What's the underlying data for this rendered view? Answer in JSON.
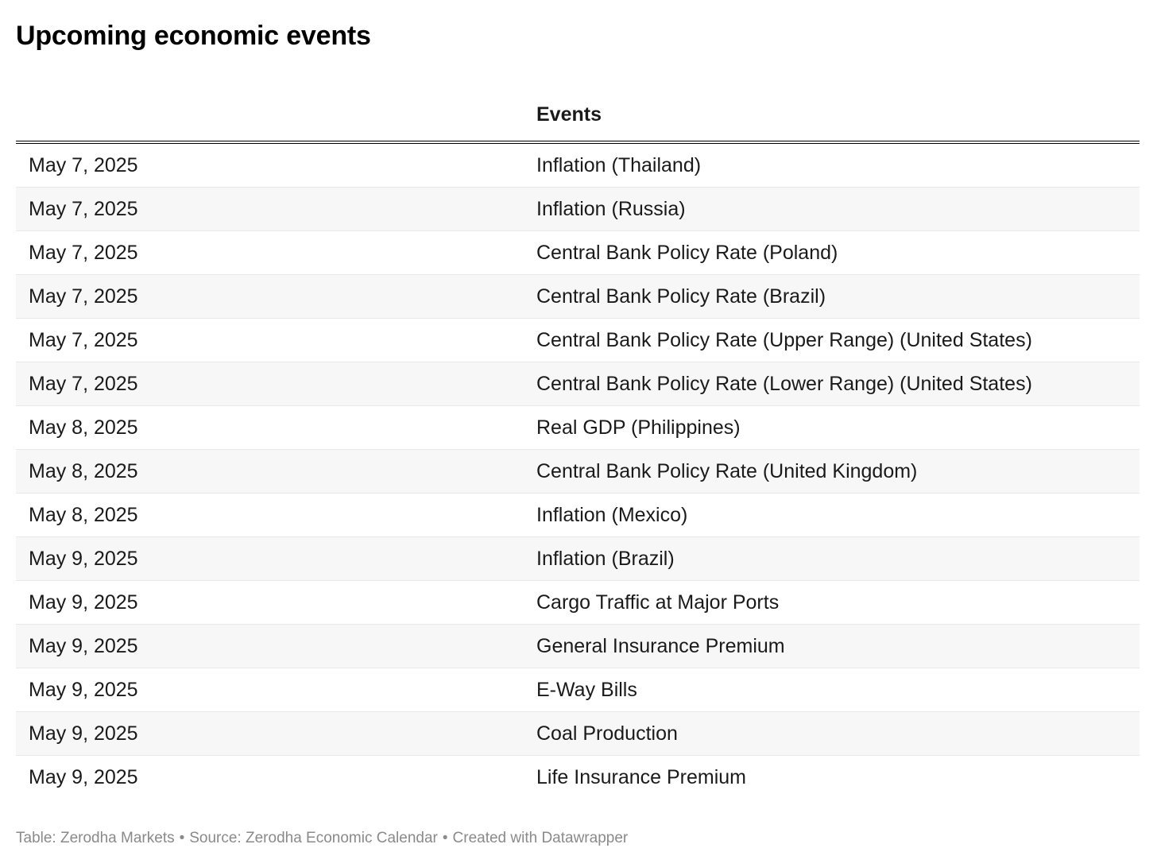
{
  "title": "Upcoming economic events",
  "table": {
    "header": {
      "date_label": "",
      "events_label": "Events"
    },
    "rows": [
      {
        "date": "May 7, 2025",
        "event": "Inflation (Thailand)"
      },
      {
        "date": "May 7, 2025",
        "event": "Inflation (Russia)"
      },
      {
        "date": "May 7, 2025",
        "event": "Central Bank Policy Rate (Poland)"
      },
      {
        "date": "May 7, 2025",
        "event": "Central Bank Policy Rate (Brazil)"
      },
      {
        "date": "May 7, 2025",
        "event": "Central Bank Policy Rate (Upper Range) (United States)"
      },
      {
        "date": "May 7, 2025",
        "event": "Central Bank Policy Rate (Lower Range) (United States)"
      },
      {
        "date": "May 8, 2025",
        "event": "Real GDP (Philippines)"
      },
      {
        "date": "May 8, 2025",
        "event": "Central Bank Policy Rate (United Kingdom)"
      },
      {
        "date": "May 8, 2025",
        "event": "Inflation (Mexico)"
      },
      {
        "date": "May 9, 2025",
        "event": "Inflation (Brazil)"
      },
      {
        "date": "May 9, 2025",
        "event": "Cargo Traffic at Major Ports"
      },
      {
        "date": "May 9, 2025",
        "event": "General Insurance Premium"
      },
      {
        "date": "May 9, 2025",
        "event": "E-Way Bills"
      },
      {
        "date": "May 9, 2025",
        "event": "Coal Production"
      },
      {
        "date": "May 9, 2025",
        "event": "Life Insurance Premium"
      }
    ]
  },
  "footer": {
    "table_credit": "Table: Zerodha Markets",
    "separator": "•",
    "source_credit": "Source: Zerodha Economic Calendar",
    "created_credit": "Created with Datawrapper"
  },
  "colors": {
    "text": "#1a1a1a",
    "title": "#000000",
    "row_stripe": "#f7f7f7",
    "row_divider": "#e8e8e8",
    "header_rule": "#000000",
    "footer_text": "#8a8a8a",
    "background": "#ffffff"
  },
  "chart_data": {
    "type": "table",
    "title": "Upcoming economic events",
    "columns": [
      "",
      "Events"
    ],
    "rows": [
      [
        "May 7, 2025",
        "Inflation (Thailand)"
      ],
      [
        "May 7, 2025",
        "Inflation (Russia)"
      ],
      [
        "May 7, 2025",
        "Central Bank Policy Rate (Poland)"
      ],
      [
        "May 7, 2025",
        "Central Bank Policy Rate (Brazil)"
      ],
      [
        "May 7, 2025",
        "Central Bank Policy Rate (Upper Range) (United States)"
      ],
      [
        "May 7, 2025",
        "Central Bank Policy Rate (Lower Range) (United States)"
      ],
      [
        "May 8, 2025",
        "Real GDP (Philippines)"
      ],
      [
        "May 8, 2025",
        "Central Bank Policy Rate (United Kingdom)"
      ],
      [
        "May 8, 2025",
        "Inflation (Mexico)"
      ],
      [
        "May 9, 2025",
        "Inflation (Brazil)"
      ],
      [
        "May 9, 2025",
        "Cargo Traffic at Major Ports"
      ],
      [
        "May 9, 2025",
        "General Insurance Premium"
      ],
      [
        "May 9, 2025",
        "E-Way Bills"
      ],
      [
        "May 9, 2025",
        "Coal Production"
      ],
      [
        "May 9, 2025",
        "Life Insurance Premium"
      ]
    ],
    "notes": "Zebra-striped table, no numeric axes; footer credits: Table: Zerodha Markets / Source: Zerodha Economic Calendar / Created with Datawrapper"
  }
}
